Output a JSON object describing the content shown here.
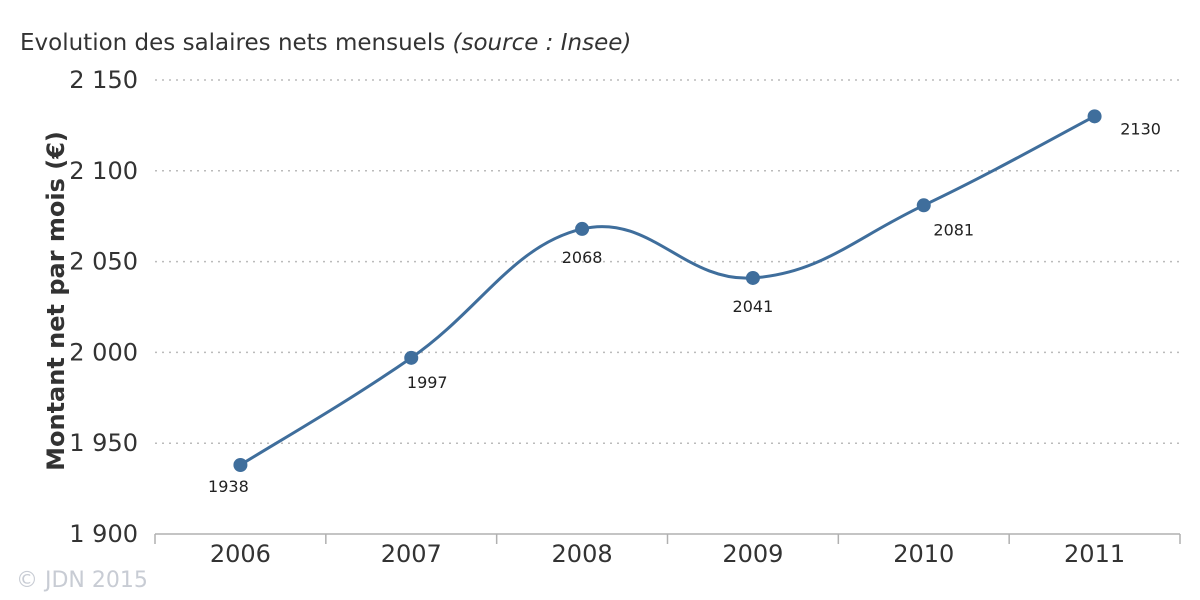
{
  "chart_data": {
    "type": "line",
    "title": "Evolution des salaires nets mensuels",
    "title_source": "(source : Insee)",
    "xlabel": "",
    "ylabel": "Montant net par mois (€)",
    "categories": [
      "2006",
      "2007",
      "2008",
      "2009",
      "2010",
      "2011"
    ],
    "series": [
      {
        "values": [
          1938,
          1997,
          2068,
          2041,
          2081,
          2130
        ],
        "data_labels": [
          "1938",
          "1997",
          "2068",
          "2041",
          "2081",
          "2130"
        ],
        "color": "#3f6e9c"
      }
    ],
    "ylim": [
      1900,
      2150
    ],
    "yticks": [
      1900,
      1950,
      2000,
      2050,
      2100,
      2150
    ],
    "ytick_labels": [
      "1 900",
      "1 950",
      "2 000",
      "2 050",
      "2 100",
      "2 150"
    ],
    "grid": "horizontal dotted",
    "legend": "none"
  },
  "footer": {
    "copyright": "© JDN 2015"
  },
  "colors": {
    "line": "#3f6e9c",
    "grid": "#bbbbbb",
    "axis": "#b0b0b0",
    "text": "#333333"
  }
}
